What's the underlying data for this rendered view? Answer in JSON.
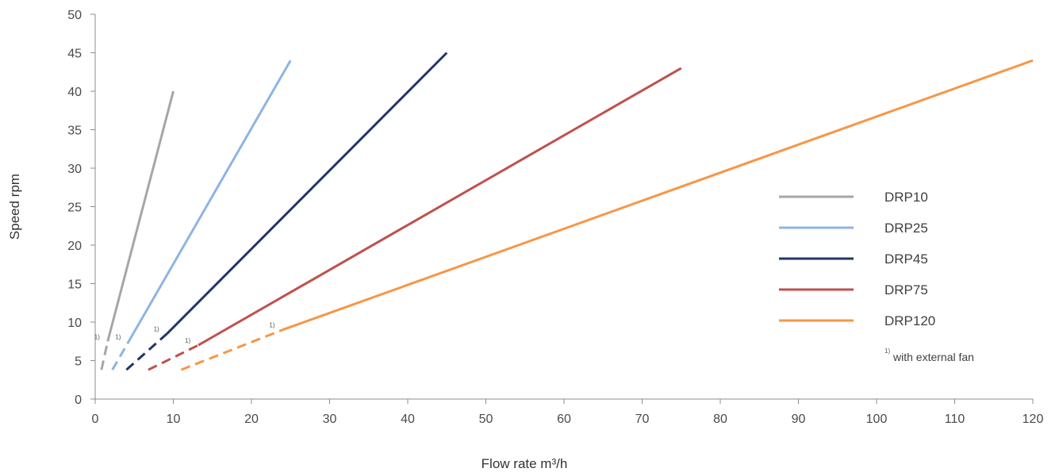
{
  "chart_data": {
    "type": "line",
    "xlabel": "Flow rate m³/h",
    "ylabel": "Speed rpm",
    "xlim": [
      0,
      120
    ],
    "ylim": [
      0,
      50
    ],
    "x_ticks": [
      "0",
      "10",
      "20",
      "30",
      "40",
      "50",
      "60",
      "70",
      "80",
      "90",
      "100",
      "110",
      "120"
    ],
    "y_ticks": [
      "0",
      "5",
      "10",
      "15",
      "20",
      "25",
      "30",
      "35",
      "40",
      "45",
      "50"
    ],
    "grid": false,
    "legend_position": "right",
    "series": [
      {
        "name": "DRP10",
        "color": "#a6a6a6",
        "dashed_segment": {
          "x": [
            0.8,
            1.6
          ],
          "y": [
            3.8,
            7.5
          ]
        },
        "solid_segment": {
          "x": [
            1.6,
            10
          ],
          "y": [
            7.5,
            40
          ]
        },
        "footnote_mark": "1)"
      },
      {
        "name": "DRP25",
        "color": "#8eb4e3",
        "dashed_segment": {
          "x": [
            2.2,
            4.3
          ],
          "y": [
            3.8,
            7.5
          ]
        },
        "solid_segment": {
          "x": [
            4.3,
            25
          ],
          "y": [
            7.5,
            44
          ]
        },
        "footnote_mark": "1)"
      },
      {
        "name": "DRP45",
        "color": "#1f3864",
        "dashed_segment": {
          "x": [
            4,
            9.2
          ],
          "y": [
            3.8,
            8.5
          ]
        },
        "solid_segment": {
          "x": [
            9.2,
            45
          ],
          "y": [
            8.5,
            45
          ]
        },
        "footnote_mark": "1)"
      },
      {
        "name": "DRP75",
        "color": "#c0504d",
        "dashed_segment": {
          "x": [
            6.8,
            13.2
          ],
          "y": [
            3.8,
            7
          ]
        },
        "solid_segment": {
          "x": [
            13.2,
            75
          ],
          "y": [
            7,
            43
          ]
        },
        "footnote_mark": "1)"
      },
      {
        "name": "DRP120",
        "color": "#f79646",
        "dashed_segment": {
          "x": [
            11,
            24
          ],
          "y": [
            3.8,
            9
          ]
        },
        "solid_segment": {
          "x": [
            24,
            120
          ],
          "y": [
            9,
            44
          ]
        },
        "footnote_mark": "1)"
      }
    ],
    "footnote": {
      "mark": "1)",
      "text": "with external fan"
    }
  }
}
